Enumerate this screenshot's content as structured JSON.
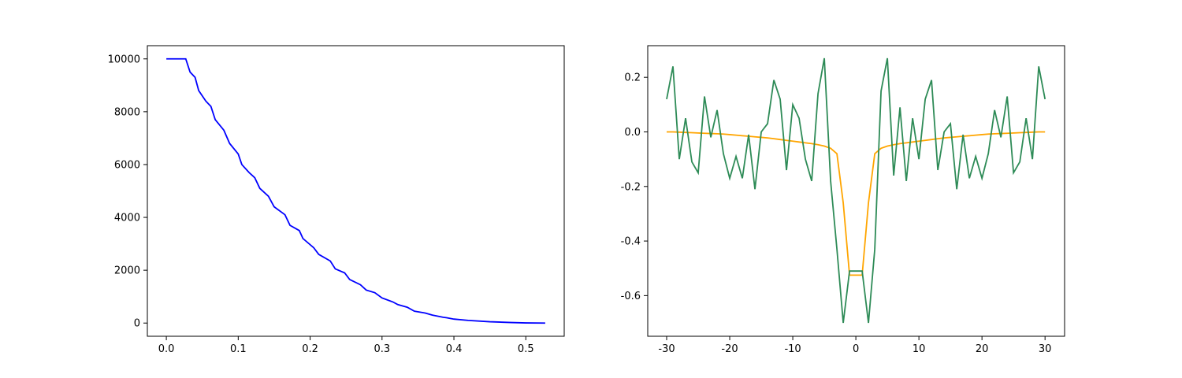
{
  "chart_data": [
    {
      "type": "line",
      "x": [
        0,
        0.027,
        0.033,
        0.04,
        0.045,
        0.055,
        0.062,
        0.068,
        0.08,
        0.088,
        0.1,
        0.105,
        0.115,
        0.123,
        0.13,
        0.142,
        0.15,
        0.165,
        0.172,
        0.185,
        0.19,
        0.205,
        0.212,
        0.228,
        0.235,
        0.248,
        0.255,
        0.27,
        0.278,
        0.29,
        0.3,
        0.315,
        0.322,
        0.335,
        0.345,
        0.36,
        0.37,
        0.385,
        0.39,
        0.4,
        0.42,
        0.45,
        0.48,
        0.5,
        0.527
      ],
      "series": [
        {
          "color": "#0000ff",
          "values": [
            10000,
            10000,
            9500,
            9300,
            8800,
            8400,
            8200,
            7700,
            7300,
            6800,
            6400,
            6000,
            5700,
            5500,
            5100,
            4800,
            4400,
            4100,
            3700,
            3500,
            3200,
            2850,
            2600,
            2350,
            2050,
            1900,
            1650,
            1450,
            1250,
            1150,
            950,
            800,
            700,
            600,
            450,
            380,
            300,
            220,
            200,
            150,
            100,
            50,
            20,
            5,
            0
          ]
        }
      ],
      "xlim": [
        -0.0264,
        0.5534
      ],
      "ylim": [
        -500,
        10500
      ],
      "xticks": [
        {
          "value": 0,
          "label": "0.0"
        },
        0.1,
        0.2,
        0.3,
        0.4,
        0.5
      ],
      "yticks": [
        0,
        2000,
        4000,
        6000,
        8000,
        10000
      ]
    },
    {
      "type": "line",
      "x": [
        -30,
        -29,
        -28,
        -27,
        -26,
        -25,
        -24,
        -23,
        -22,
        -21,
        -20,
        -19,
        -18,
        -17,
        -16,
        -15,
        -14,
        -13,
        -12,
        -11,
        -10,
        -9,
        -8,
        -7,
        -6,
        -5,
        -4,
        -3,
        -2,
        -1,
        0,
        1,
        2,
        3,
        4,
        5,
        6,
        7,
        8,
        9,
        10,
        11,
        12,
        13,
        14,
        15,
        16,
        17,
        18,
        19,
        20,
        21,
        22,
        23,
        24,
        25,
        26,
        27,
        28,
        29,
        30
      ],
      "series": [
        {
          "color": "#ffa500",
          "values": [
            0,
            0,
            -0.001,
            -0.002,
            -0.003,
            -0.004,
            -0.005,
            -0.006,
            -0.007,
            -0.008,
            -0.01,
            -0.012,
            -0.014,
            -0.016,
            -0.018,
            -0.02,
            -0.022,
            -0.025,
            -0.028,
            -0.031,
            -0.034,
            -0.037,
            -0.04,
            -0.043,
            -0.047,
            -0.052,
            -0.06,
            -0.08,
            -0.26,
            -0.525,
            -0.525,
            -0.525,
            -0.26,
            -0.08,
            -0.06,
            -0.052,
            -0.047,
            -0.043,
            -0.04,
            -0.037,
            -0.034,
            -0.031,
            -0.028,
            -0.025,
            -0.022,
            -0.02,
            -0.018,
            -0.016,
            -0.014,
            -0.012,
            -0.01,
            -0.008,
            -0.007,
            -0.006,
            -0.005,
            -0.004,
            -0.003,
            -0.002,
            -0.001,
            0,
            0
          ]
        },
        {
          "color": "#2e8b57",
          "values": [
            0.12,
            0.24,
            -0.1,
            0.05,
            -0.11,
            -0.15,
            0.13,
            -0.02,
            0.08,
            -0.08,
            -0.17,
            -0.09,
            -0.17,
            -0.01,
            -0.21,
            0.0,
            0.03,
            0.19,
            0.12,
            -0.14,
            0.1,
            0.05,
            -0.1,
            -0.18,
            0.14,
            0.27,
            -0.18,
            -0.43,
            -0.7,
            -0.51,
            -0.51,
            -0.51,
            -0.7,
            -0.43,
            0.15,
            0.27,
            -0.16,
            0.09,
            -0.18,
            0.05,
            -0.1,
            0.12,
            0.19,
            -0.14,
            0.0,
            0.03,
            -0.21,
            -0.01,
            -0.17,
            -0.09,
            -0.17,
            -0.08,
            0.08,
            -0.02,
            0.13,
            -0.15,
            -0.11,
            0.05,
            -0.1,
            0.24,
            0.12
          ]
        }
      ],
      "xlim": [
        -33,
        33.1
      ],
      "ylim": [
        -0.749,
        0.316
      ],
      "xticks": [
        -30,
        -20,
        -10,
        0,
        10,
        20,
        30
      ],
      "yticks": [
        -0.6,
        -0.4,
        -0.2,
        {
          "value": 0,
          "label": "0.0"
        },
        0.2
      ]
    }
  ]
}
